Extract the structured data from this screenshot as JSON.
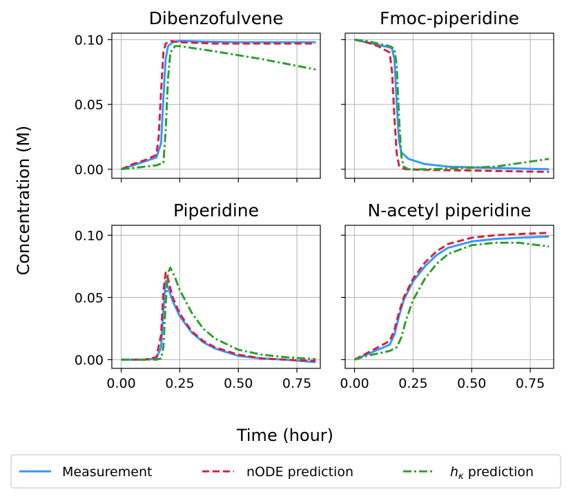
{
  "figure": {
    "ylabel": "Concentration (M)",
    "xlabel": "Time (hour)"
  },
  "legend": {
    "items": [
      {
        "label": "Measurement",
        "color": "#3399ff",
        "style": "solid"
      },
      {
        "label": "nODE prediction",
        "color": "#d62040",
        "style": "dashed"
      },
      {
        "label_prefix": "h",
        "label_sub": "κ",
        "label_suffix": " prediction",
        "color": "#2ca02c",
        "style": "dashdot"
      }
    ]
  },
  "chart_data": [
    {
      "type": "line",
      "title": "Dibenzofulvene",
      "xlim": [
        -0.04,
        0.85
      ],
      "ylim": [
        -0.007,
        0.105
      ],
      "xticks": [
        0,
        0.25,
        0.5,
        0.75
      ],
      "xtick_labels": [
        "",
        "",
        "",
        ""
      ],
      "yticks": [
        0,
        0.05,
        0.1
      ],
      "ytick_labels": [
        "0.00",
        "0.05",
        "0.10"
      ],
      "series": [
        {
          "name": "Measurement",
          "x": [
            0,
            0.05,
            0.1,
            0.15,
            0.17,
            0.18,
            0.19,
            0.2,
            0.22,
            0.25,
            0.35,
            0.5,
            0.65,
            0.83
          ],
          "y": [
            0,
            0.003,
            0.006,
            0.009,
            0.02,
            0.055,
            0.085,
            0.095,
            0.098,
            0.099,
            0.0985,
            0.098,
            0.098,
            0.098
          ]
        },
        {
          "name": "nODE prediction",
          "x": [
            0,
            0.05,
            0.1,
            0.15,
            0.16,
            0.17,
            0.18,
            0.19,
            0.21,
            0.25,
            0.4,
            0.6,
            0.83
          ],
          "y": [
            0,
            0.004,
            0.007,
            0.011,
            0.025,
            0.06,
            0.09,
            0.097,
            0.099,
            0.098,
            0.097,
            0.097,
            0.097
          ]
        },
        {
          "name": "h_κ prediction",
          "x": [
            0,
            0.05,
            0.1,
            0.15,
            0.18,
            0.19,
            0.2,
            0.21,
            0.23,
            0.25,
            0.4,
            0.6,
            0.83
          ],
          "y": [
            0,
            0.001,
            0.002,
            0.003,
            0.005,
            0.03,
            0.07,
            0.09,
            0.095,
            0.095,
            0.091,
            0.085,
            0.077
          ]
        }
      ]
    },
    {
      "type": "line",
      "title": "Fmoc-piperidine",
      "xlim": [
        -0.04,
        0.85
      ],
      "ylim": [
        -0.007,
        0.105
      ],
      "xticks": [
        0,
        0.25,
        0.5,
        0.75
      ],
      "xtick_labels": [
        "",
        "",
        "",
        ""
      ],
      "yticks": [
        0,
        0.05,
        0.1
      ],
      "ytick_labels": [
        "",
        "",
        ""
      ],
      "series": [
        {
          "name": "Measurement",
          "x": [
            0,
            0.05,
            0.1,
            0.15,
            0.16,
            0.17,
            0.18,
            0.19,
            0.2,
            0.23,
            0.3,
            0.4,
            0.6,
            0.83
          ],
          "y": [
            0.1,
            0.098,
            0.096,
            0.094,
            0.093,
            0.085,
            0.05,
            0.022,
            0.013,
            0.008,
            0.004,
            0.002,
            0.001,
            0
          ]
        },
        {
          "name": "nODE prediction",
          "x": [
            0,
            0.05,
            0.1,
            0.15,
            0.16,
            0.17,
            0.18,
            0.19,
            0.2,
            0.22,
            0.3,
            0.5,
            0.83
          ],
          "y": [
            0.1,
            0.098,
            0.095,
            0.09,
            0.075,
            0.04,
            0.012,
            0.003,
            0.001,
            0,
            -0.0005,
            -0.001,
            -0.002
          ]
        },
        {
          "name": "h_κ prediction",
          "x": [
            0,
            0.05,
            0.1,
            0.15,
            0.17,
            0.18,
            0.19,
            0.2,
            0.21,
            0.23,
            0.3,
            0.4,
            0.6,
            0.83
          ],
          "y": [
            0.1,
            0.099,
            0.097,
            0.095,
            0.093,
            0.08,
            0.04,
            0.01,
            0.002,
            0,
            0,
            0.0005,
            0.002,
            0.008
          ]
        }
      ]
    },
    {
      "type": "line",
      "title": "Piperidine",
      "xlim": [
        -0.04,
        0.85
      ],
      "ylim": [
        -0.007,
        0.108
      ],
      "xticks": [
        0,
        0.25,
        0.5,
        0.75
      ],
      "xtick_labels": [
        "0.00",
        "0.25",
        "0.50",
        "0.75"
      ],
      "yticks": [
        0,
        0.05,
        0.1
      ],
      "ytick_labels": [
        "0.00",
        "0.05",
        "0.10"
      ],
      "series": [
        {
          "name": "Measurement",
          "x": [
            0,
            0.1,
            0.15,
            0.17,
            0.18,
            0.19,
            0.2,
            0.22,
            0.25,
            0.3,
            0.35,
            0.4,
            0.5,
            0.6,
            0.7,
            0.83
          ],
          "y": [
            0,
            0,
            0.001,
            0.01,
            0.04,
            0.063,
            0.058,
            0.047,
            0.035,
            0.022,
            0.014,
            0.009,
            0.003,
            0.001,
            0,
            -0.002
          ]
        },
        {
          "name": "nODE prediction",
          "x": [
            0,
            0.1,
            0.15,
            0.17,
            0.18,
            0.19,
            0.2,
            0.22,
            0.25,
            0.3,
            0.35,
            0.4,
            0.5,
            0.6,
            0.7,
            0.83
          ],
          "y": [
            0,
            0,
            0.002,
            0.02,
            0.055,
            0.07,
            0.065,
            0.05,
            0.037,
            0.023,
            0.015,
            0.01,
            0.004,
            0.001,
            0,
            -0.001
          ]
        },
        {
          "name": "h_κ prediction",
          "x": [
            0,
            0.1,
            0.15,
            0.17,
            0.18,
            0.19,
            0.2,
            0.21,
            0.23,
            0.25,
            0.3,
            0.35,
            0.4,
            0.5,
            0.6,
            0.7,
            0.83
          ],
          "y": [
            0,
            0,
            0,
            0.001,
            0.01,
            0.045,
            0.07,
            0.074,
            0.066,
            0.056,
            0.038,
            0.025,
            0.017,
            0.008,
            0.004,
            0.002,
            0.0005
          ]
        }
      ]
    },
    {
      "type": "line",
      "title": "N-acetyl piperidine",
      "xlim": [
        -0.04,
        0.85
      ],
      "ylim": [
        -0.007,
        0.108
      ],
      "xticks": [
        0,
        0.25,
        0.5,
        0.75
      ],
      "xtick_labels": [
        "0.00",
        "0.25",
        "0.50",
        "0.75"
      ],
      "yticks": [
        0,
        0.05,
        0.1
      ],
      "ytick_labels": [
        "",
        "",
        ""
      ],
      "series": [
        {
          "name": "Measurement",
          "x": [
            0,
            0.05,
            0.1,
            0.15,
            0.17,
            0.19,
            0.21,
            0.25,
            0.3,
            0.35,
            0.4,
            0.5,
            0.6,
            0.7,
            0.83
          ],
          "y": [
            0,
            0.004,
            0.008,
            0.012,
            0.02,
            0.035,
            0.048,
            0.063,
            0.075,
            0.084,
            0.09,
            0.095,
            0.097,
            0.098,
            0.099
          ]
        },
        {
          "name": "nODE prediction",
          "x": [
            0,
            0.05,
            0.1,
            0.15,
            0.17,
            0.19,
            0.21,
            0.25,
            0.3,
            0.35,
            0.4,
            0.5,
            0.6,
            0.7,
            0.83
          ],
          "y": [
            0,
            0.005,
            0.01,
            0.015,
            0.024,
            0.038,
            0.05,
            0.065,
            0.078,
            0.087,
            0.093,
            0.098,
            0.1,
            0.101,
            0.102
          ]
        },
        {
          "name": "h_κ prediction",
          "x": [
            0,
            0.05,
            0.1,
            0.15,
            0.18,
            0.2,
            0.22,
            0.25,
            0.3,
            0.35,
            0.4,
            0.5,
            0.6,
            0.7,
            0.83
          ],
          "y": [
            0,
            0.003,
            0.005,
            0.007,
            0.01,
            0.018,
            0.032,
            0.048,
            0.065,
            0.077,
            0.085,
            0.092,
            0.094,
            0.094,
            0.091
          ]
        }
      ]
    }
  ]
}
